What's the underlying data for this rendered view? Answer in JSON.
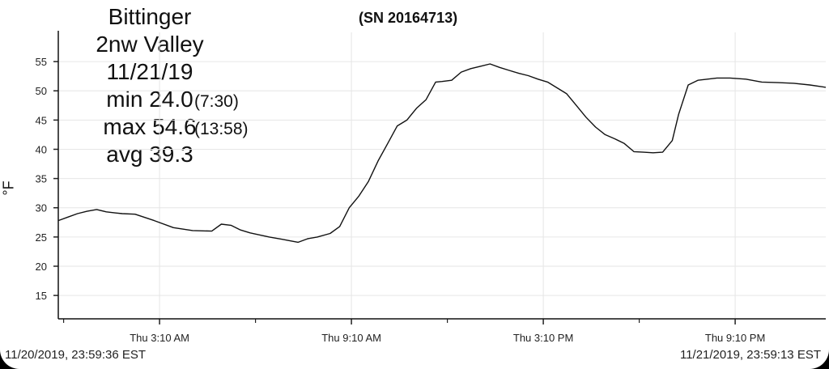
{
  "serial": "(SN 20164713)",
  "info": {
    "line1": "Bittinger",
    "line2": "2nw Valley",
    "date": "11/21/19",
    "min_label": "min 24.0",
    "min_time": "(7:30)",
    "max_label": "max 54.6",
    "max_time": "(13:58)",
    "avg_label": "avg 39.3"
  },
  "range": {
    "start": "11/20/2019, 23:59:36 EST",
    "end": "11/21/2019, 23:59:13 EST"
  },
  "chart_data": {
    "type": "line",
    "title": "",
    "xlabel": "",
    "ylabel": "°F",
    "ylim": [
      11,
      60
    ],
    "xlim": [
      0,
      24
    ],
    "yticks": [
      15,
      20,
      25,
      30,
      35,
      40,
      45,
      50,
      55
    ],
    "xticks": [
      {
        "x": 3.167,
        "label": "Thu 3:10 AM"
      },
      {
        "x": 9.167,
        "label": "Thu 9:10 AM"
      },
      {
        "x": 15.167,
        "label": "Thu 3:10 PM"
      },
      {
        "x": 21.167,
        "label": "Thu 9:10 PM"
      }
    ],
    "grid": true,
    "series": [
      {
        "name": "",
        "x": [
          0.0,
          0.3,
          0.6,
          0.9,
          1.2,
          1.5,
          1.8,
          2.0,
          2.4,
          3.0,
          3.6,
          4.2,
          4.8,
          5.1,
          5.4,
          5.7,
          6.0,
          6.6,
          7.0,
          7.3,
          7.5,
          7.8,
          8.1,
          8.5,
          8.8,
          9.1,
          9.4,
          9.7,
          10.0,
          10.3,
          10.6,
          10.9,
          11.2,
          11.5,
          11.8,
          12.0,
          12.3,
          12.6,
          12.9,
          13.2,
          13.5,
          13.8,
          14.1,
          14.4,
          14.7,
          15.0,
          15.3,
          15.6,
          15.9,
          16.2,
          16.5,
          16.8,
          17.1,
          17.4,
          17.7,
          18.0,
          18.3,
          18.6,
          18.9,
          19.2,
          19.4,
          19.7,
          20.0,
          20.3,
          20.6,
          21.0,
          21.5,
          22.0,
          22.5,
          23.0,
          23.5,
          24.0
        ],
        "values": [
          27.8,
          28.4,
          29.0,
          29.4,
          29.7,
          29.3,
          29.1,
          29.0,
          28.9,
          27.8,
          26.6,
          26.1,
          26.0,
          27.2,
          27.0,
          26.2,
          25.7,
          25.0,
          24.6,
          24.3,
          24.1,
          24.7,
          25.0,
          25.6,
          26.8,
          30.0,
          32.0,
          34.5,
          38.0,
          41.0,
          44.0,
          45.0,
          47.0,
          48.5,
          51.5,
          51.6,
          51.8,
          53.2,
          53.8,
          54.2,
          54.6,
          54.0,
          53.5,
          53.0,
          52.6,
          52.0,
          51.5,
          50.5,
          49.5,
          47.5,
          45.5,
          43.8,
          42.5,
          41.8,
          41.0,
          39.6,
          39.5,
          39.4,
          39.5,
          41.5,
          46.0,
          51.0,
          51.8,
          52.0,
          52.2,
          52.2,
          52.0,
          51.5,
          51.4,
          51.3,
          51.0,
          50.6
        ]
      }
    ]
  }
}
